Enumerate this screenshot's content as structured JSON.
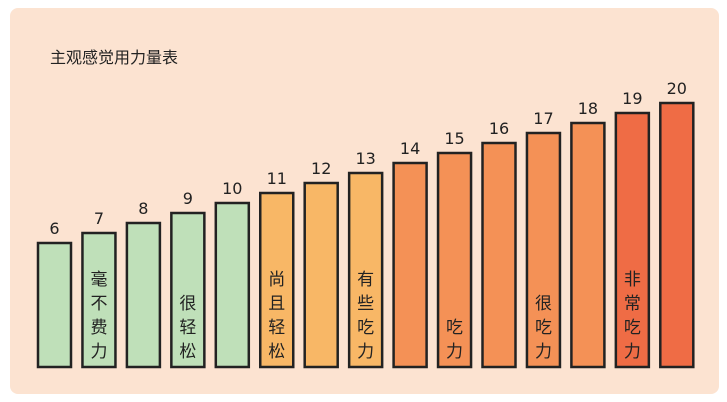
{
  "title": "主观感觉用力量表",
  "background_color": "#fce3d1",
  "chart_data": {
    "type": "bar",
    "title": "主观感觉用力量表",
    "categories": [
      "6",
      "7",
      "8",
      "9",
      "10",
      "11",
      "12",
      "13",
      "14",
      "15",
      "16",
      "17",
      "18",
      "19",
      "20"
    ],
    "values": [
      6,
      7,
      8,
      9,
      10,
      11,
      12,
      13,
      14,
      15,
      16,
      17,
      18,
      19,
      20
    ],
    "bar_labels": [
      "",
      "毫不费力",
      "",
      "很轻松",
      "",
      "尚且轻松",
      "",
      "有些吃力",
      "",
      "吃力",
      "",
      "很吃力",
      "",
      "非常吃力",
      ""
    ],
    "colors": [
      "#bfe0b9",
      "#bfe0b9",
      "#bfe0b9",
      "#bfe0b9",
      "#bfe0b9",
      "#f8b766",
      "#f8b766",
      "#f8b766",
      "#f49156",
      "#f49156",
      "#f49156",
      "#f49156",
      "#f49156",
      "#ef6c45",
      "#ef6c45"
    ],
    "outline_color": "#222222",
    "ylim": [
      0,
      20
    ],
    "grid": false,
    "xlabel": "",
    "ylabel": ""
  }
}
